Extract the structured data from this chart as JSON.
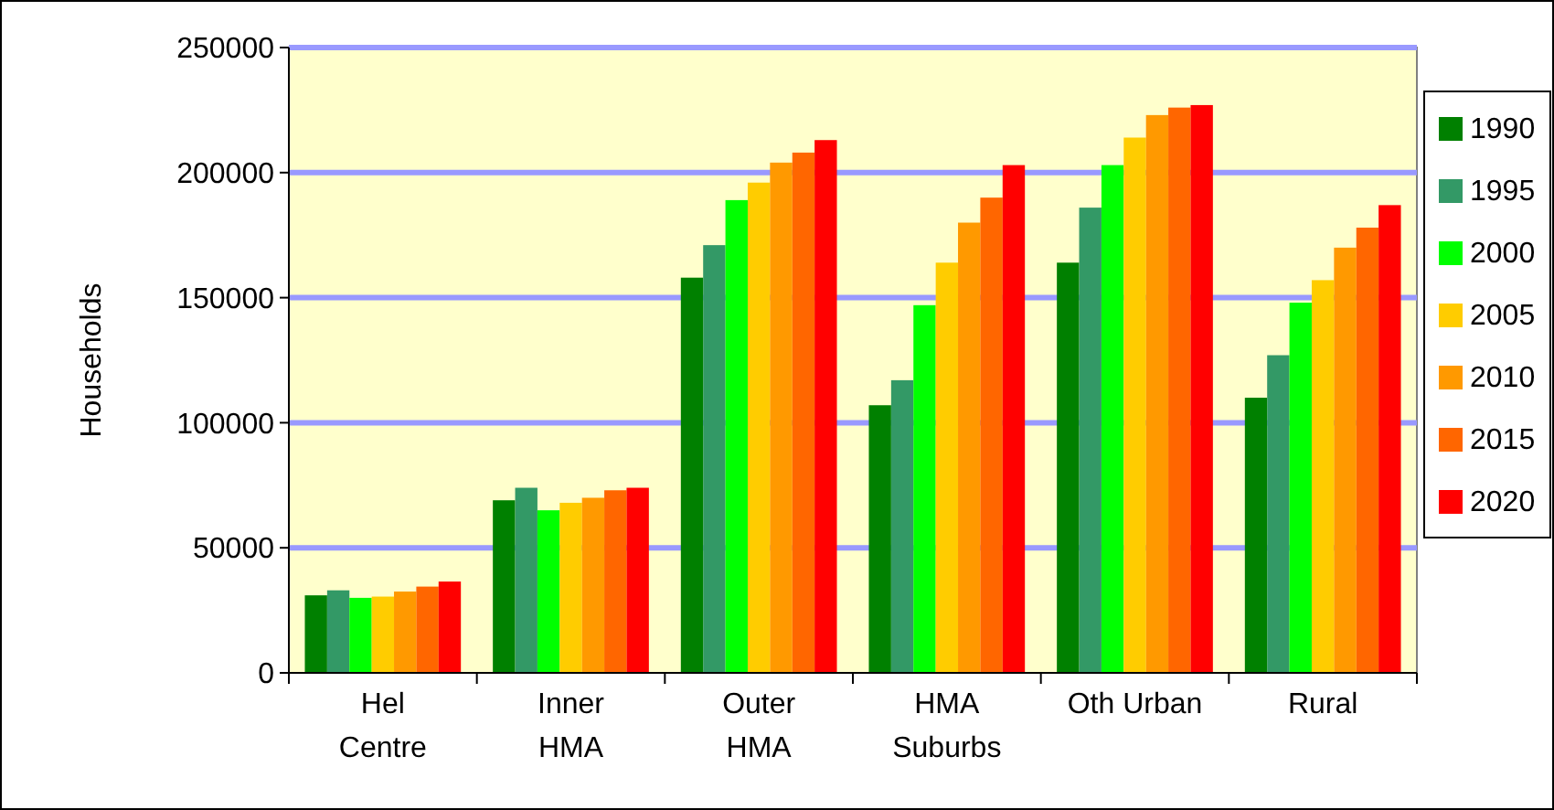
{
  "chart_data": {
    "type": "bar",
    "ylabel": "Households",
    "categories": [
      "Hel\nCentre",
      "Inner\nHMA",
      "Outer\nHMA",
      "HMA\nSuburbs",
      "Oth Urban",
      "Rural"
    ],
    "series": [
      {
        "name": "1990",
        "color": "#008000",
        "values": [
          31000,
          69000,
          158000,
          107000,
          164000,
          110000
        ]
      },
      {
        "name": "1995",
        "color": "#339966",
        "values": [
          33000,
          74000,
          171000,
          117000,
          186000,
          127000
        ]
      },
      {
        "name": "2000",
        "color": "#00ff00",
        "values": [
          30000,
          65000,
          189000,
          147000,
          203000,
          148000
        ]
      },
      {
        "name": "2005",
        "color": "#ffcc00",
        "values": [
          30500,
          68000,
          196000,
          164000,
          214000,
          157000
        ]
      },
      {
        "name": "2010",
        "color": "#ff9900",
        "values": [
          32500,
          70000,
          204000,
          180000,
          223000,
          170000
        ]
      },
      {
        "name": "2015",
        "color": "#ff6600",
        "values": [
          34500,
          73000,
          208000,
          190000,
          226000,
          178000
        ]
      },
      {
        "name": "2020",
        "color": "#ff0000",
        "values": [
          36500,
          74000,
          213000,
          203000,
          227000,
          187000
        ]
      }
    ],
    "ylim": [
      0,
      250000
    ],
    "yticks": [
      0,
      50000,
      100000,
      150000,
      200000,
      250000
    ],
    "grid": "y",
    "legend": "right"
  }
}
